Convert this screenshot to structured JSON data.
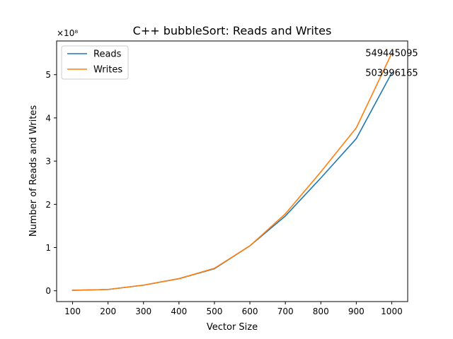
{
  "chart_data": {
    "type": "line",
    "title": "C++ bubbleSort: Reads and Writes",
    "xlabel": "Vector Size",
    "ylabel": "Number of Reads and Writes",
    "y_scale_label": "×10⁸",
    "y_scale_factor": 100000000,
    "x": [
      100,
      200,
      300,
      400,
      500,
      600,
      700,
      800,
      900,
      1000
    ],
    "xlim": [
      55,
      1045
    ],
    "ylim": [
      -25000000,
      578000000
    ],
    "xticks": [
      100,
      200,
      300,
      400,
      500,
      600,
      700,
      800,
      900,
      1000
    ],
    "yticks": [
      0,
      1,
      2,
      3,
      4,
      5
    ],
    "grid": false,
    "legend_position": "top-left",
    "series": [
      {
        "name": "Reads",
        "color": "#1f77b4",
        "values": [
          1000000,
          3000000,
          13000000,
          28000000,
          51000000,
          104000000,
          173000000,
          261000000,
          352000000,
          503996165
        ]
      },
      {
        "name": "Writes",
        "color": "#ff7f0e",
        "values": [
          1000000,
          3000000,
          13000000,
          28000000,
          52000000,
          104000000,
          178000000,
          275000000,
          377000000,
          549445095
        ]
      }
    ],
    "annotations": [
      {
        "x": 1000,
        "y": 549445095,
        "text": "549445095"
      },
      {
        "x": 1000,
        "y": 503996165,
        "text": "503996165"
      }
    ]
  }
}
